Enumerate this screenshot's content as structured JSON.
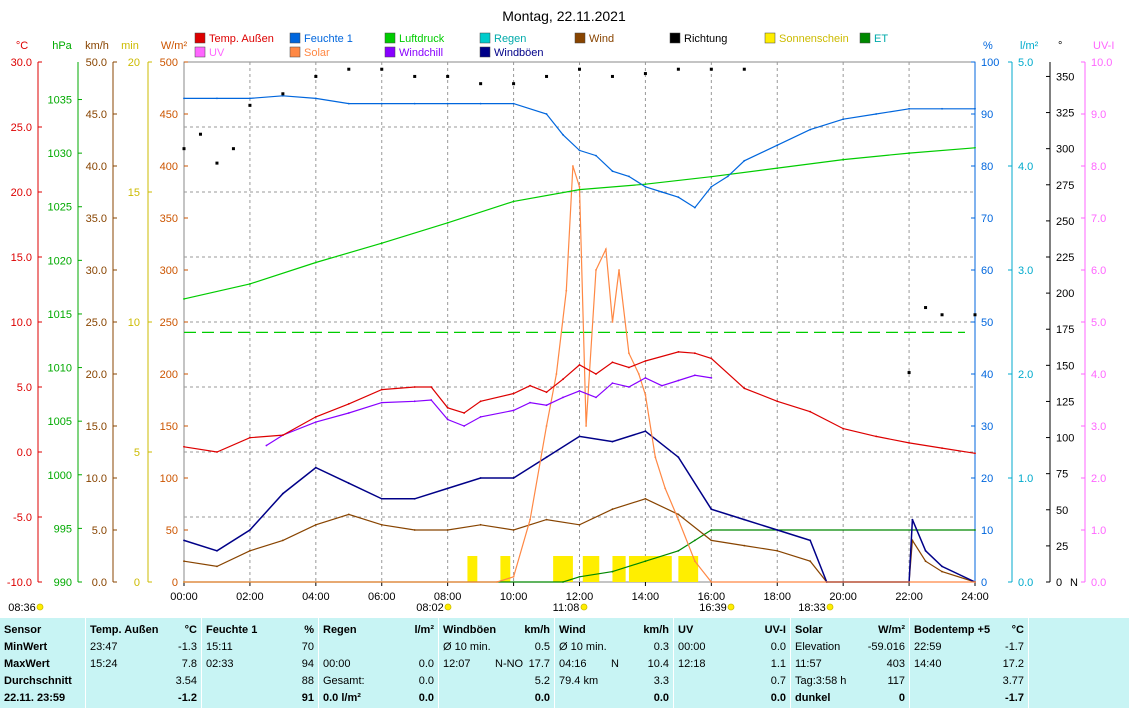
{
  "title": "Montag, 22.11.2021",
  "legend": [
    {
      "label": "Temp. Außen",
      "color": "#dd0000"
    },
    {
      "label": "Feuchte 1",
      "color": "#0066dd"
    },
    {
      "label": "Luftdruck",
      "color": "#00cc00"
    },
    {
      "label": "Regen",
      "color": "#00cccc"
    },
    {
      "label": "Wind",
      "color": "#884400"
    },
    {
      "label": "Richtung",
      "color": "#000000"
    },
    {
      "label": "Sonnenschein",
      "color": "#ffee00"
    },
    {
      "label": "ET",
      "color": "#008800"
    },
    {
      "label": "UV",
      "color": "#ff66ff"
    },
    {
      "label": "Solar",
      "color": "#ff8844"
    },
    {
      "label": "Windchill",
      "color": "#8800ff"
    },
    {
      "label": "Windböen",
      "color": "#000088"
    }
  ],
  "axes_left": [
    {
      "unit": "°C",
      "color": "#dd0000",
      "ticks": [
        "30.0",
        "25.0",
        "20.0",
        "15.0",
        "10.0",
        "5.0",
        "0.0",
        "-5.0",
        "-10.0"
      ]
    },
    {
      "unit": "hPa",
      "color": "#00aa00",
      "ticks": [
        "1035",
        "1030",
        "1025",
        "1020",
        "1015",
        "1010",
        "1005",
        "1000",
        "995",
        "990"
      ]
    },
    {
      "unit": "km/h",
      "color": "#884400",
      "ticks": [
        "50.0",
        "45.0",
        "40.0",
        "35.0",
        "30.0",
        "25.0",
        "20.0",
        "15.0",
        "10.0",
        "5.0",
        "0.0"
      ]
    },
    {
      "unit": "min",
      "color": "#ccbb00",
      "ticks": [
        "20",
        "15",
        "10",
        "5",
        "0"
      ]
    },
    {
      "unit": "W/m²",
      "color": "#cc5500",
      "ticks": [
        "500",
        "450",
        "400",
        "350",
        "300",
        "250",
        "200",
        "150",
        "100",
        "50",
        "0"
      ]
    }
  ],
  "axes_right": [
    {
      "unit": "%",
      "color": "#0066dd",
      "ticks": [
        "100",
        "90",
        "80",
        "70",
        "60",
        "50",
        "40",
        "30",
        "20",
        "10",
        "0"
      ]
    },
    {
      "unit": "l/m²",
      "color": "#00aacc",
      "ticks": [
        "5.0",
        "4.0",
        "3.0",
        "2.0",
        "1.0",
        "0.0"
      ]
    },
    {
      "unit": "°",
      "color": "#000000",
      "ticks": [
        "350",
        "325",
        "300",
        "275",
        "250",
        "225",
        "200",
        "175",
        "150",
        "125",
        "100",
        "75",
        "50",
        "25",
        "0"
      ],
      "n_label": "N"
    },
    {
      "unit": "UV-I",
      "color": "#ff66ff",
      "ticks": [
        "10.0",
        "9.0",
        "8.0",
        "7.0",
        "6.0",
        "5.0",
        "4.0",
        "3.0",
        "2.0",
        "1.0",
        "0.0"
      ]
    }
  ],
  "x_ticks": [
    "00:00",
    "02:00",
    "04:00",
    "06:00",
    "08:00",
    "10:00",
    "12:00",
    "14:00",
    "16:00",
    "18:00",
    "20:00",
    "22:00",
    "24:00"
  ],
  "sun_marks": [
    "08:36",
    "08:02",
    "11:08",
    "16:39",
    "18:33"
  ],
  "chart_data": {
    "type": "line",
    "x_unit": "hour",
    "series": [
      {
        "name": "Temp. Außen",
        "unit": "°C",
        "color": "#dd0000",
        "x": [
          0,
          1,
          2,
          3,
          4,
          5,
          6,
          7,
          7.5,
          8,
          8.5,
          9,
          10,
          10.5,
          11,
          11.5,
          12,
          12.5,
          13,
          13.5,
          14,
          15,
          15.5,
          16,
          17,
          18,
          19,
          20,
          21,
          22,
          23,
          24
        ],
        "y": [
          0.4,
          0.0,
          1.1,
          1.3,
          2.7,
          3.7,
          4.8,
          5.0,
          5.0,
          3.4,
          3.0,
          3.9,
          4.5,
          5.1,
          4.6,
          5.6,
          6.7,
          6.0,
          6.9,
          6.5,
          7.0,
          7.7,
          7.6,
          7.2,
          4.9,
          3.9,
          3.1,
          1.8,
          1.2,
          0.7,
          0.3,
          -0.1
        ]
      },
      {
        "name": "Luftdruck",
        "unit": "hPa",
        "color": "#00cc00",
        "x": [
          0,
          2,
          4,
          6,
          8,
          10,
          12,
          14,
          16,
          18,
          20,
          22,
          24
        ],
        "y": [
          1016.4,
          1017.8,
          1019.8,
          1021.6,
          1023.5,
          1025.5,
          1026.6,
          1027.1,
          1027.8,
          1028.6,
          1029.4,
          1030.0,
          1030.5
        ]
      },
      {
        "name": "Feuchte 1",
        "unit": "%",
        "color": "#0066dd",
        "x": [
          0,
          1,
          2,
          3,
          4,
          5,
          6,
          7,
          8,
          9,
          10,
          11,
          11.5,
          12,
          12.5,
          13,
          13.5,
          14,
          14.5,
          15,
          15.5,
          16,
          16.5,
          17,
          18,
          19,
          20,
          21,
          22,
          23,
          24
        ],
        "y": [
          93,
          93,
          93,
          93.5,
          93,
          92,
          92,
          92,
          92,
          92,
          92,
          90,
          86,
          83,
          82,
          79,
          78,
          76,
          75,
          74,
          72,
          76,
          78,
          81,
          84,
          87,
          89,
          90,
          91,
          91,
          91
        ]
      },
      {
        "name": "Solar",
        "unit": "W/m²",
        "color": "#ff8844",
        "x": [
          0,
          9.5,
          10,
          10.5,
          11,
          11.3,
          11.6,
          11.8,
          12,
          12.2,
          12.5,
          12.8,
          13,
          13.2,
          13.5,
          13.8,
          14,
          14.3,
          14.6,
          15,
          15.5,
          16,
          24
        ],
        "y": [
          0,
          0,
          5,
          60,
          150,
          200,
          280,
          400,
          380,
          150,
          300,
          320,
          250,
          300,
          220,
          200,
          180,
          120,
          90,
          60,
          20,
          0,
          0
        ]
      },
      {
        "name": "Windchill",
        "unit": "°C",
        "color": "#8800ff",
        "x": [
          2.5,
          3,
          4,
          5,
          6,
          7,
          7.5,
          8,
          8.5,
          9,
          10,
          10.5,
          11,
          11.5,
          12,
          12.5,
          13,
          13.5,
          14,
          14.5,
          15,
          15.5,
          16
        ],
        "y": [
          0.5,
          1.3,
          2.3,
          3.0,
          3.8,
          3.9,
          4.0,
          2.5,
          2.0,
          2.7,
          3.2,
          3.8,
          3.6,
          4.2,
          4.7,
          4.2,
          5.3,
          5.0,
          5.7,
          5.1,
          5.5,
          5.9,
          5.7
        ]
      },
      {
        "name": "Wind",
        "unit": "km/h",
        "color": "#884400",
        "x": [
          0,
          1,
          2,
          3,
          4,
          5,
          6,
          7,
          8,
          9,
          10,
          11,
          12,
          13,
          14,
          15,
          16,
          17,
          18,
          19,
          19.5,
          20,
          22,
          22.1,
          22.5,
          23,
          24
        ],
        "y": [
          2.0,
          1.5,
          3.0,
          4.0,
          5.5,
          6.5,
          5.5,
          5.0,
          5.0,
          5.5,
          5.0,
          6.0,
          5.5,
          7.0,
          8.0,
          6.5,
          4.0,
          3.5,
          3.0,
          2.0,
          0,
          0,
          0,
          4.0,
          2.0,
          1.0,
          0
        ]
      },
      {
        "name": "Windböen",
        "unit": "km/h",
        "color": "#000088",
        "x": [
          0,
          1,
          2,
          3,
          4,
          5,
          6,
          7,
          8,
          9,
          10,
          11,
          12,
          13,
          14,
          15,
          16,
          17,
          18,
          19,
          19.5,
          20,
          22,
          22.1,
          22.5,
          23,
          24
        ],
        "y": [
          4.0,
          3.0,
          5.0,
          8.5,
          11.0,
          9.5,
          8.0,
          8.0,
          9.0,
          10.0,
          10.0,
          12.0,
          14.0,
          13.5,
          14.5,
          12.0,
          7.0,
          6.0,
          5.0,
          4.0,
          0,
          0,
          0,
          6.0,
          3.0,
          1.5,
          0
        ]
      },
      {
        "name": "ET",
        "unit": "l/m²",
        "color": "#008800",
        "x": [
          0,
          11.5,
          12,
          13,
          14,
          15,
          15.5,
          16,
          24
        ],
        "y": [
          0,
          0,
          0.05,
          0.1,
          0.2,
          0.3,
          0.4,
          0.5,
          0.5
        ]
      },
      {
        "name": "Richtung",
        "unit": "°",
        "color": "#000000",
        "x": [
          0,
          0.5,
          1,
          1.5,
          2,
          3,
          4,
          5,
          6,
          7,
          8,
          9,
          10,
          11,
          12,
          13,
          14,
          15,
          16,
          17,
          22,
          22.5,
          23,
          24
        ],
        "y": [
          300,
          310,
          290,
          300,
          330,
          338,
          350,
          355,
          355,
          350,
          350,
          345,
          345,
          350,
          355,
          350,
          352,
          355,
          355,
          355,
          145,
          190,
          185,
          185
        ]
      }
    ],
    "y_ranges": {
      "°C": [
        -10,
        30
      ],
      "hPa": [
        990,
        1038.5
      ],
      "km/h": [
        0,
        50
      ],
      "min": [
        0,
        20
      ],
      "W/m²": [
        0,
        500
      ],
      "%": [
        0,
        100
      ],
      "l/m²": [
        0,
        5
      ],
      "°": [
        0,
        360
      ],
      "UV-I": [
        0,
        10
      ]
    },
    "reference_line": {
      "y": 240,
      "unit": "W/m²",
      "color": "#00cc00"
    },
    "sunshine_blocks_hours": [
      [
        8.6,
        8.9
      ],
      [
        9.6,
        9.9
      ],
      [
        11.2,
        11.8
      ],
      [
        12.1,
        12.6
      ],
      [
        13.0,
        13.4
      ],
      [
        13.5,
        14.8
      ],
      [
        15.0,
        15.6
      ]
    ]
  },
  "table": {
    "headers": {
      "sensor": "Sensor",
      "temp": "Temp. Außen",
      "temp_unit": "°C",
      "feuchte": "Feuchte 1",
      "feuchte_unit": "%",
      "regen": "Regen",
      "regen_unit": "l/m²",
      "boeen": "Windböen",
      "boeen_unit": "km/h",
      "wind": "Wind",
      "wind_unit": "km/h",
      "uv": "UV",
      "uv_unit": "UV-I",
      "solar": "Solar",
      "solar_unit": "W/m²",
      "boden": "Bodentemp +5",
      "boden_unit": "°C"
    },
    "row_labels": [
      "MinWert",
      "MaxWert",
      "Durchschnitt",
      "22.11. 23:59"
    ],
    "temp": [
      [
        "23:47",
        "-1.3"
      ],
      [
        "15:24",
        "7.8"
      ],
      [
        "",
        "3.54"
      ],
      [
        "",
        "-1.2"
      ]
    ],
    "feuchte": [
      [
        "15:11",
        "70"
      ],
      [
        "02:33",
        "94"
      ],
      [
        "",
        "88"
      ],
      [
        "",
        "91"
      ]
    ],
    "regen": [
      [
        "",
        ""
      ],
      [
        "00:00",
        "0.0"
      ],
      [
        "Gesamt:",
        "0.0"
      ],
      [
        "0.0 l/m²",
        "0.0"
      ]
    ],
    "boeen": [
      [
        "Ø 10 min.",
        "",
        "0.5"
      ],
      [
        "12:07",
        "N-NO",
        "17.7"
      ],
      [
        "",
        "",
        "5.2"
      ],
      [
        "",
        "",
        "0.0"
      ]
    ],
    "wind": [
      [
        "Ø 10 min.",
        "",
        "0.3"
      ],
      [
        "04:16",
        "N",
        "10.4"
      ],
      [
        "79.4 km",
        "",
        "3.3"
      ],
      [
        "",
        "",
        "0.0"
      ]
    ],
    "uv": [
      [
        "00:00",
        "0.0"
      ],
      [
        "12:18",
        "1.1"
      ],
      [
        "",
        "0.7"
      ],
      [
        "",
        "0.0"
      ]
    ],
    "solar": [
      [
        "Elevation",
        "-59.016"
      ],
      [
        "11:57",
        "403"
      ],
      [
        "Tag:3:58 h",
        "117"
      ],
      [
        "dunkel",
        "0"
      ]
    ],
    "boden": [
      [
        "22:59",
        "-1.7"
      ],
      [
        "14:40",
        "17.2"
      ],
      [
        "",
        "3.77"
      ],
      [
        "",
        "-1.7"
      ]
    ]
  }
}
